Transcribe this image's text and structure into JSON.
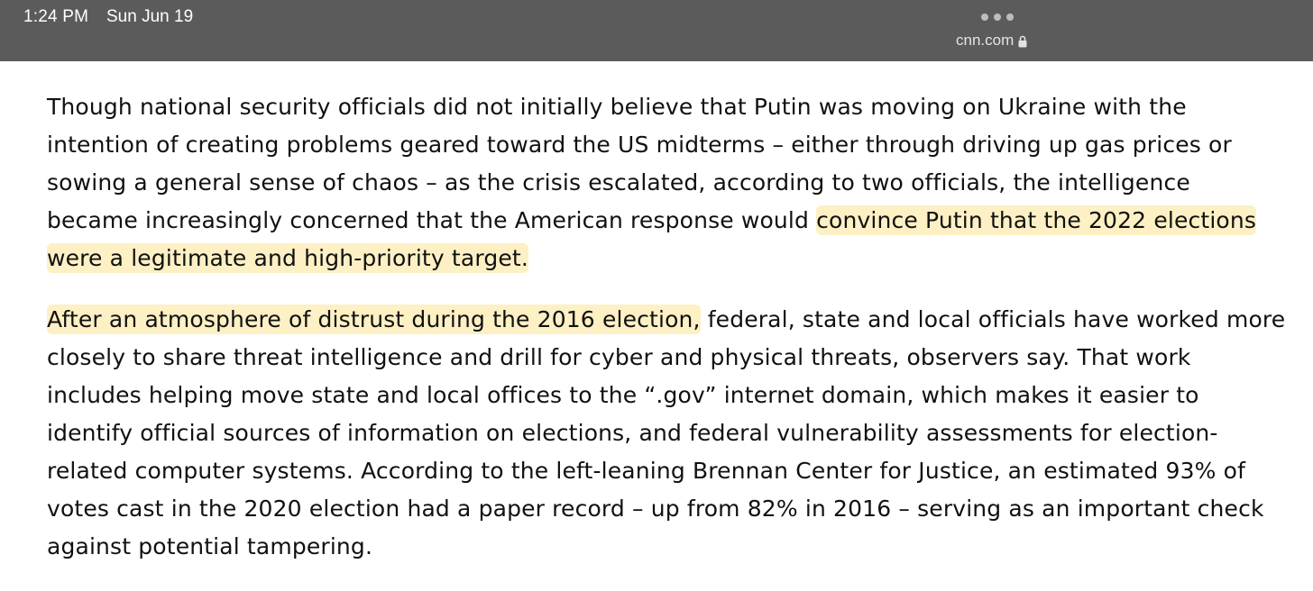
{
  "status_bar": {
    "time": "1:24 PM",
    "date": "Sun Jun 19",
    "url": "cnn.com",
    "more_icon": "more-dots-icon",
    "lock_icon": "lock-icon"
  },
  "article": {
    "paragraph1": {
      "plain": "Though national security officials did not initially believe that Putin was moving on Ukraine with the intention of creating problems geared toward the US midterms – either through driving up gas prices or sowing a general sense of chaos – as the crisis escalated, according to two officials, the intelligence became increasingly concerned that the American response would ",
      "highlighted": "convince Putin that the 2022 elections were a legitimate and high-priority target."
    },
    "paragraph2": {
      "highlighted": "After an atmosphere of distrust during the 2016 election,",
      "plain": " federal, state and local officials have worked more closely to share threat intelligence and drill for cyber and physical threats, observers say. That work includes helping move state and local offices to the “.gov” internet domain, which makes it easier to identify official sources of information on elections, and federal vulnerability assessments for election-related computer systems. According to the left-leaning Brennan Center for Justice, an estimated 93% of votes cast in the 2020 election had a paper record – up from 82% in 2016 – serving as an important check against potential tampering."
    }
  },
  "colors": {
    "status_bar_bg": "#5b5b5b",
    "highlight": "#fdf0c4",
    "text": "#111111"
  }
}
